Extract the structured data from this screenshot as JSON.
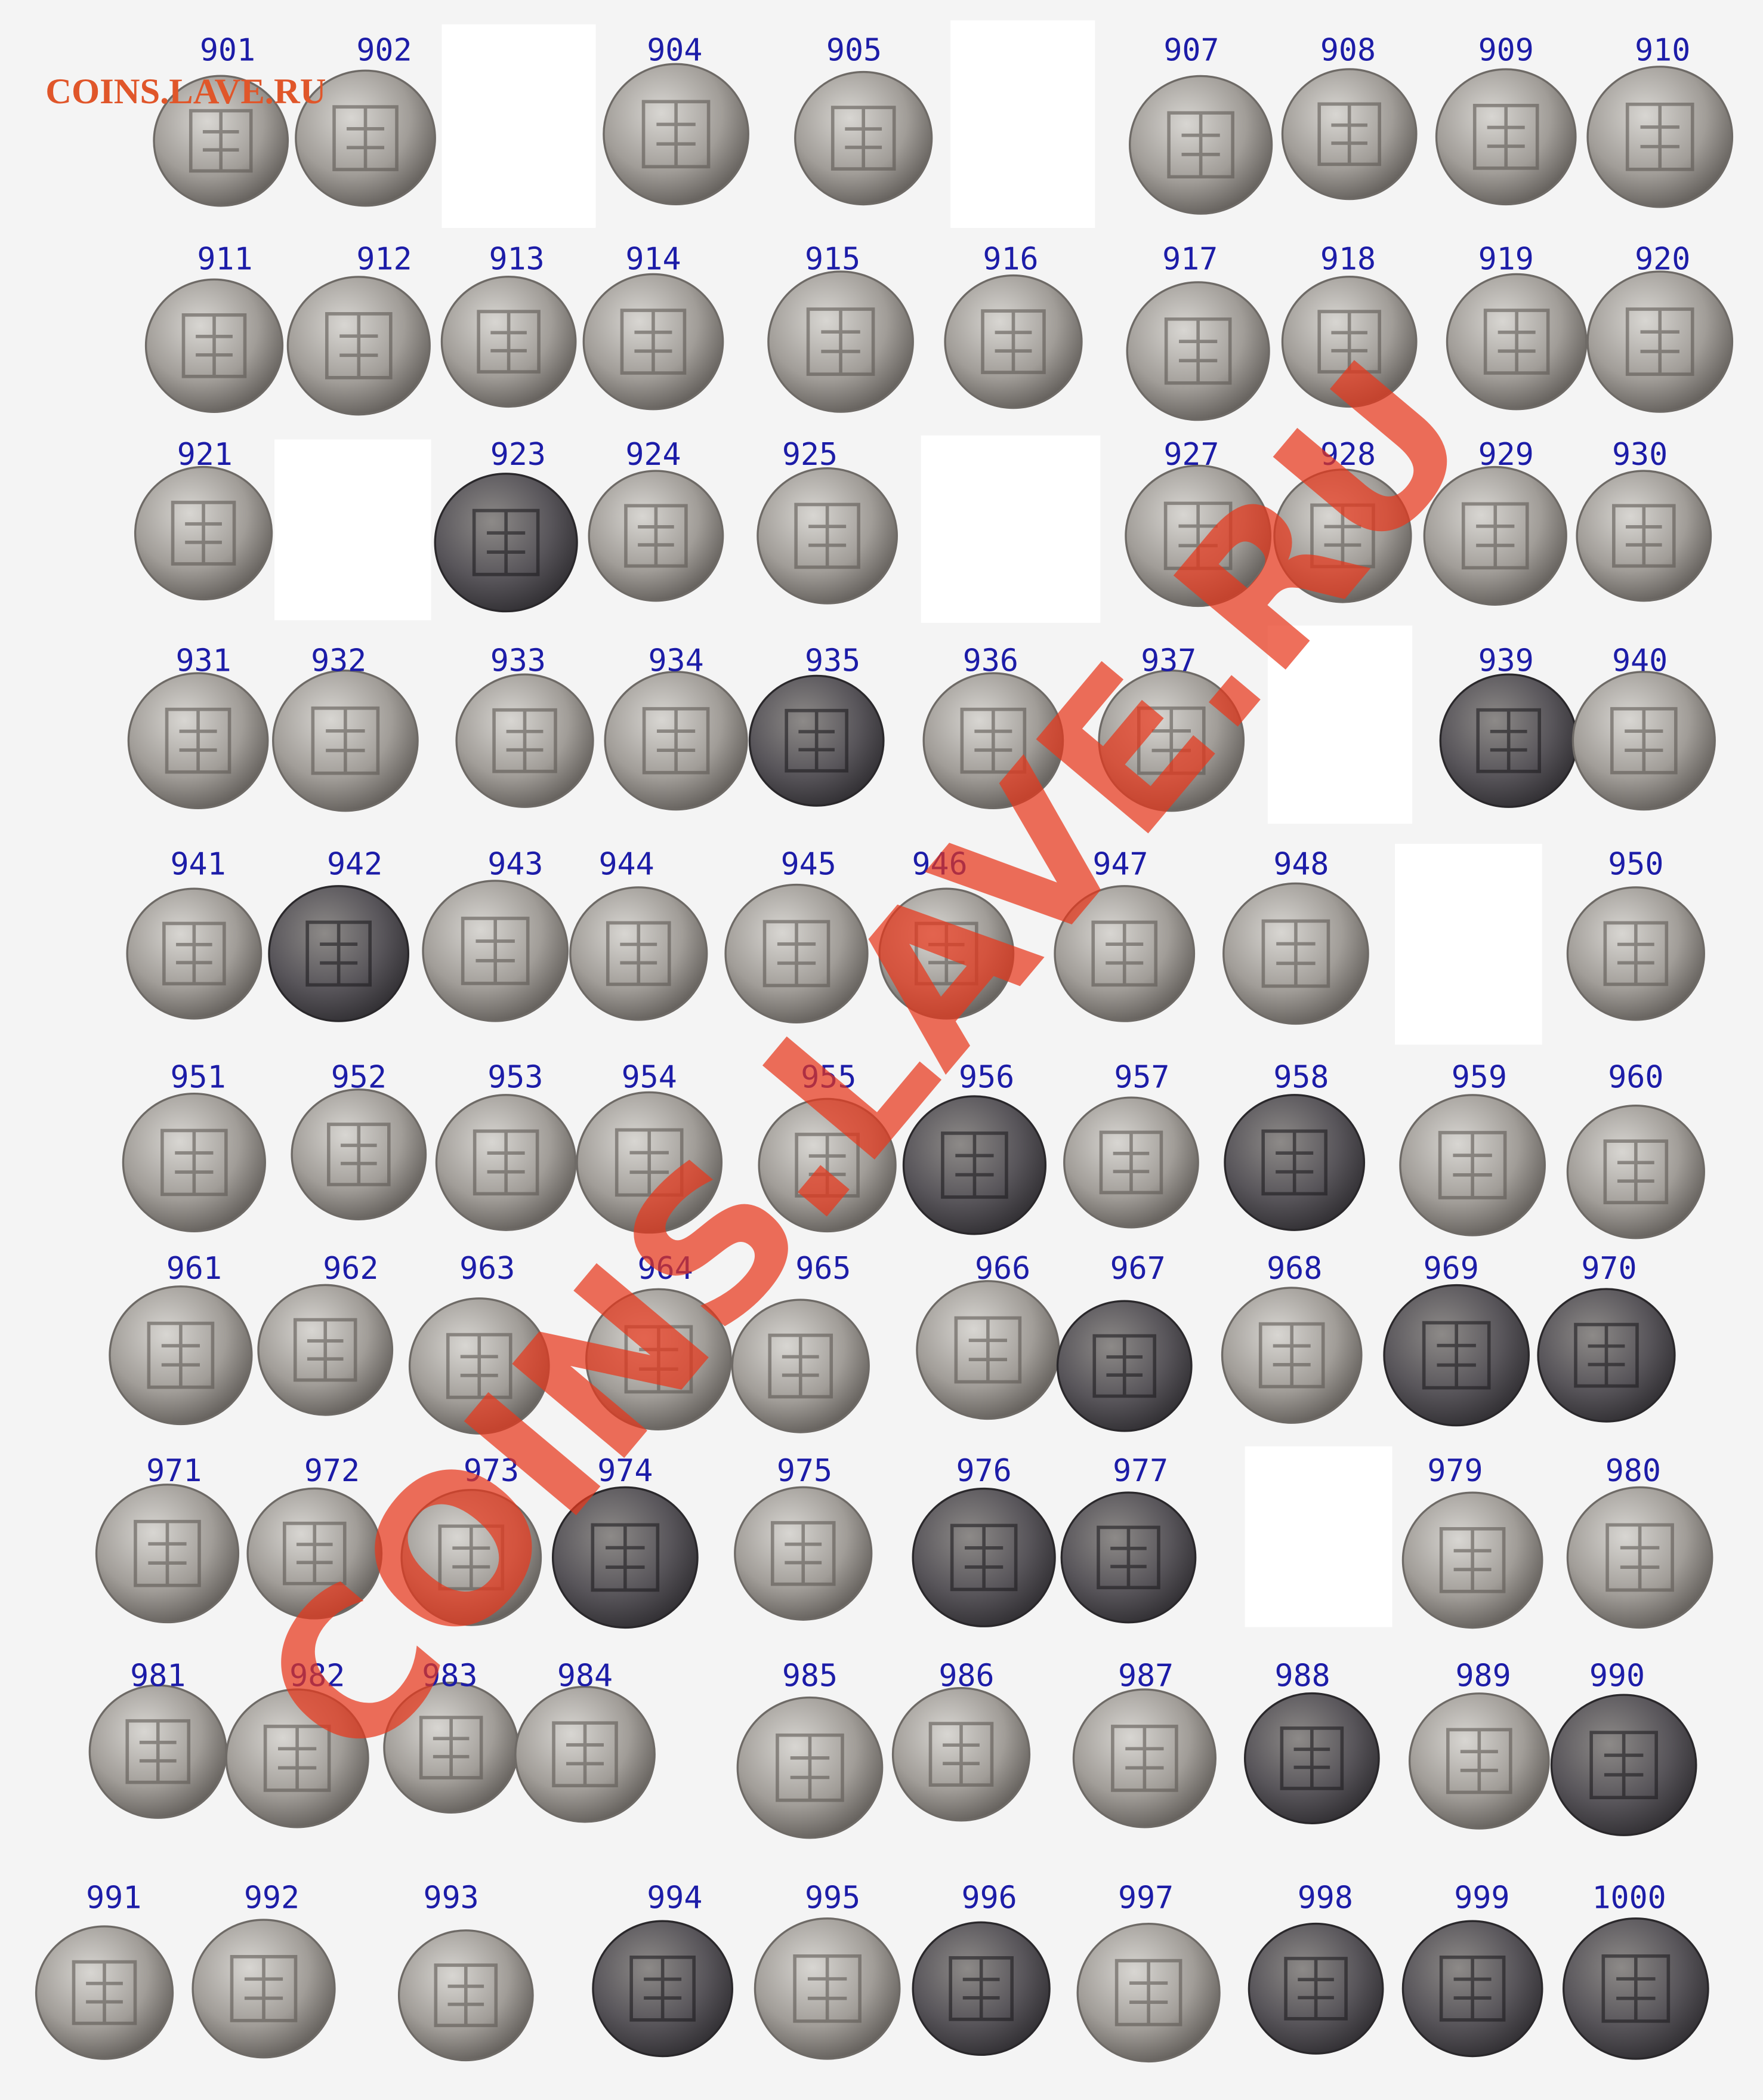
{
  "watermark": "COINS.LAVE.RU",
  "diagonal_watermark": "COINS.LAVE.RU",
  "coins": [
    {
      "label": "901"
    },
    {
      "label": "902"
    },
    {
      "label": "904"
    },
    {
      "label": "905"
    },
    {
      "label": "907"
    },
    {
      "label": "908"
    },
    {
      "label": "909"
    },
    {
      "label": "910"
    },
    {
      "label": "911"
    },
    {
      "label": "912"
    },
    {
      "label": "913"
    },
    {
      "label": "914"
    },
    {
      "label": "915"
    },
    {
      "label": "916"
    },
    {
      "label": "917"
    },
    {
      "label": "918"
    },
    {
      "label": "919"
    },
    {
      "label": "920"
    },
    {
      "label": "921"
    },
    {
      "label": "923"
    },
    {
      "label": "924"
    },
    {
      "label": "925"
    },
    {
      "label": "927"
    },
    {
      "label": "928"
    },
    {
      "label": "929"
    },
    {
      "label": "930"
    },
    {
      "label": "931"
    },
    {
      "label": "932"
    },
    {
      "label": "933"
    },
    {
      "label": "934"
    },
    {
      "label": "935"
    },
    {
      "label": "936"
    },
    {
      "label": "937"
    },
    {
      "label": "939"
    },
    {
      "label": "940"
    },
    {
      "label": "941"
    },
    {
      "label": "942"
    },
    {
      "label": "943"
    },
    {
      "label": "944"
    },
    {
      "label": "945"
    },
    {
      "label": "946"
    },
    {
      "label": "947"
    },
    {
      "label": "948"
    },
    {
      "label": "950"
    },
    {
      "label": "951"
    },
    {
      "label": "952"
    },
    {
      "label": "953"
    },
    {
      "label": "954"
    },
    {
      "label": "955"
    },
    {
      "label": "956"
    },
    {
      "label": "957"
    },
    {
      "label": "958"
    },
    {
      "label": "959"
    },
    {
      "label": "960"
    },
    {
      "label": "961"
    },
    {
      "label": "962"
    },
    {
      "label": "963"
    },
    {
      "label": "964"
    },
    {
      "label": "965"
    },
    {
      "label": "966"
    },
    {
      "label": "967"
    },
    {
      "label": "968"
    },
    {
      "label": "969"
    },
    {
      "label": "970"
    },
    {
      "label": "971"
    },
    {
      "label": "972"
    },
    {
      "label": "973"
    },
    {
      "label": "974"
    },
    {
      "label": "975"
    },
    {
      "label": "976"
    },
    {
      "label": "977"
    },
    {
      "label": "979"
    },
    {
      "label": "980"
    },
    {
      "label": "981"
    },
    {
      "label": "982"
    },
    {
      "label": "983"
    },
    {
      "label": "984"
    },
    {
      "label": "985"
    },
    {
      "label": "986"
    },
    {
      "label": "987"
    },
    {
      "label": "988"
    },
    {
      "label": "989"
    },
    {
      "label": "990"
    },
    {
      "label": "991"
    },
    {
      "label": "992"
    },
    {
      "label": "993"
    },
    {
      "label": "994"
    },
    {
      "label": "995"
    },
    {
      "label": "996"
    },
    {
      "label": "997"
    },
    {
      "label": "998"
    },
    {
      "label": "999"
    },
    {
      "label": "1000"
    }
  ]
}
